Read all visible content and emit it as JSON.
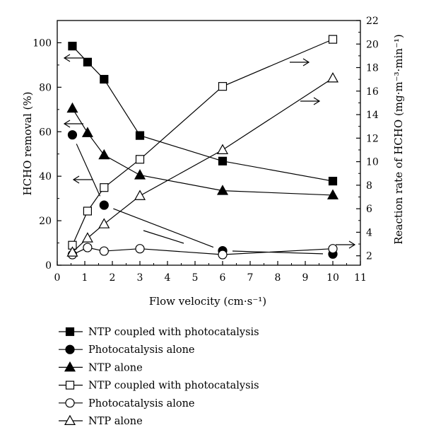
{
  "chart_data": {
    "type": "line",
    "xlabel": "Flow velocity (cm·s⁻¹)",
    "ylabel_left": "HCHO removal (%)",
    "ylabel_right": "Reaction rate of HCHO (mg·m⁻³·min⁻¹)",
    "xlim": [
      0,
      11
    ],
    "ylim_left": [
      0,
      110
    ],
    "ylim_right": [
      1.2,
      22
    ],
    "x_ticks": [
      "0",
      "1",
      "2",
      "3",
      "4",
      "5",
      "6",
      "7",
      "8",
      "9",
      "10",
      "11"
    ],
    "y_left_ticks": [
      "0",
      "20",
      "40",
      "60",
      "80",
      "100"
    ],
    "y_right_ticks": [
      "2",
      "4",
      "6",
      "8",
      "10",
      "12",
      "14",
      "16",
      "18",
      "20",
      "22"
    ],
    "legend_position": "bottom",
    "series": [
      {
        "name": "NTP coupled with photocatalysis",
        "axis": "left",
        "marker": "filled-square",
        "x": [
          0.55,
          1.1,
          1.7,
          3,
          6,
          10
        ],
        "y": [
          98.5,
          91.3,
          83.6,
          58.3,
          46.8,
          37.8
        ]
      },
      {
        "name": "Photocatalysis alone",
        "axis": "left",
        "marker": "filled-circle",
        "x": [
          0.55,
          1.7,
          6,
          10
        ],
        "y": [
          58.6,
          27.0,
          6.5,
          5.0
        ]
      },
      {
        "name": "NTP alone",
        "axis": "left",
        "marker": "filled-triangle",
        "x": [
          0.55,
          1.1,
          1.7,
          3,
          6,
          10
        ],
        "y": [
          70.5,
          59.5,
          49.5,
          40.5,
          33.5,
          31.5
        ]
      },
      {
        "name": "NTP coupled with photocatalysis",
        "axis": "right",
        "marker": "open-square",
        "x": [
          0.55,
          1.1,
          1.7,
          3,
          6,
          10
        ],
        "y": [
          2.9,
          5.8,
          7.8,
          10.2,
          16.4,
          20.4
        ]
      },
      {
        "name": "Photocatalysis alone",
        "axis": "right",
        "marker": "open-circle",
        "x": [
          0.55,
          1.1,
          1.7,
          3,
          6,
          10
        ],
        "y": [
          2.1,
          2.7,
          2.4,
          2.6,
          2.1,
          2.6
        ]
      },
      {
        "name": "NTP alone",
        "axis": "right",
        "marker": "open-triangle",
        "x": [
          0.55,
          1.1,
          1.7,
          3,
          6,
          10
        ],
        "y": [
          2.3,
          3.5,
          4.7,
          7.1,
          11.0,
          17.1
        ]
      }
    ]
  }
}
